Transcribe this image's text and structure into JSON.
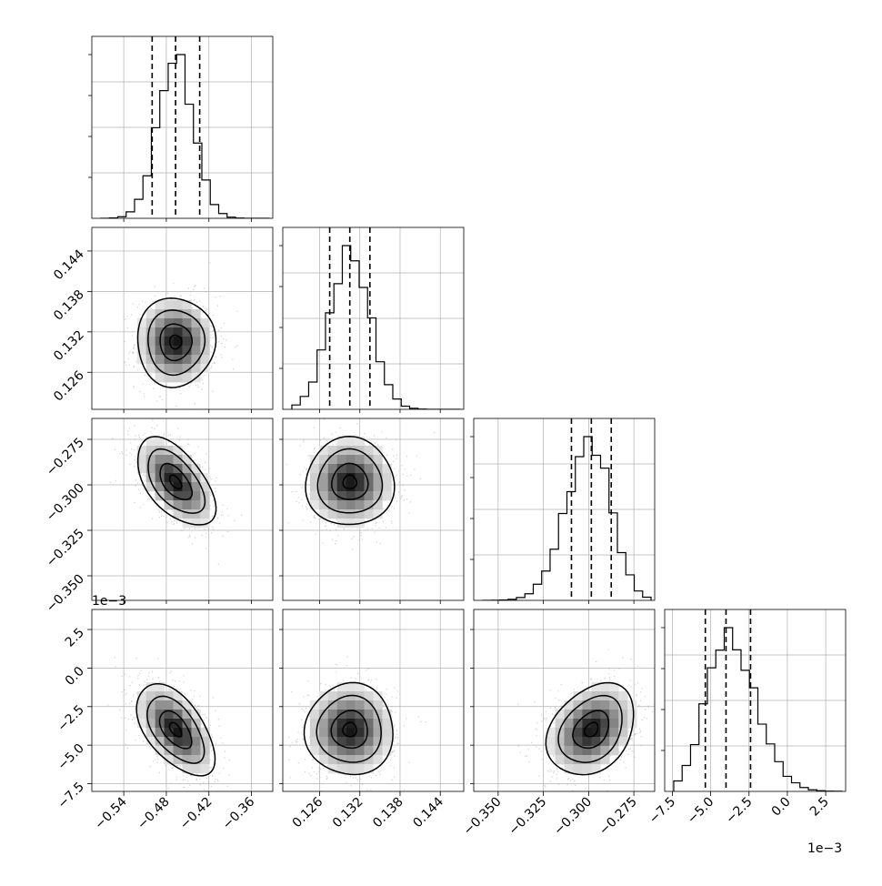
{
  "chart_data": {
    "type": "corner",
    "parameters": [
      {
        "ticks": [
          -0.54,
          -0.48,
          -0.42,
          -0.36
        ],
        "tick_labels": [
          "−0.54",
          "−0.48",
          "−0.42",
          "−0.36"
        ],
        "range": [
          -0.585,
          -0.33
        ],
        "quantiles": [
          -0.5,
          -0.467,
          -0.433
        ],
        "mean": -0.467,
        "sd": 0.025,
        "offset_label": ""
      },
      {
        "ticks": [
          0.126,
          0.132,
          0.138,
          0.144
        ],
        "tick_labels": [
          "0.126",
          "0.132",
          "0.138",
          "0.144"
        ],
        "range": [
          0.1205,
          0.1475
        ],
        "quantiles": [
          0.1275,
          0.1305,
          0.1335
        ],
        "mean": 0.1305,
        "sd": 0.003,
        "offset_label": ""
      },
      {
        "ticks": [
          -0.35,
          -0.325,
          -0.3,
          -0.275
        ],
        "tick_labels": [
          "−0.350",
          "−0.325",
          "−0.300",
          "−0.275"
        ],
        "range": [
          -0.3635,
          -0.2635
        ],
        "quantiles": [
          -0.3095,
          -0.2985,
          -0.2875
        ],
        "mean": -0.2985,
        "sd": 0.011,
        "offset_label": "1e−3"
      },
      {
        "ticks": [
          -7.5,
          -5.0,
          -2.5,
          0.0,
          2.5
        ],
        "tick_labels": [
          "−7.5",
          "−5.0",
          "−2.5",
          "0.0",
          "2.5"
        ],
        "range": [
          -8.0,
          3.8
        ],
        "quantiles": [
          -5.35,
          -4.0,
          -2.4
        ],
        "mean": -4.0,
        "sd": 1.35,
        "offset_label": "1e−3"
      }
    ],
    "correlations": {
      "1_0": 0.0,
      "2_0": -0.55,
      "2_1": 0.0,
      "3_0": -0.55,
      "3_1": 0.0,
      "3_2": 0.3
    },
    "histogram_bins": 20,
    "grid": true,
    "colors": {
      "line": "#000000",
      "points": "#b0b0b0",
      "grid": "#b0b0b0"
    }
  }
}
